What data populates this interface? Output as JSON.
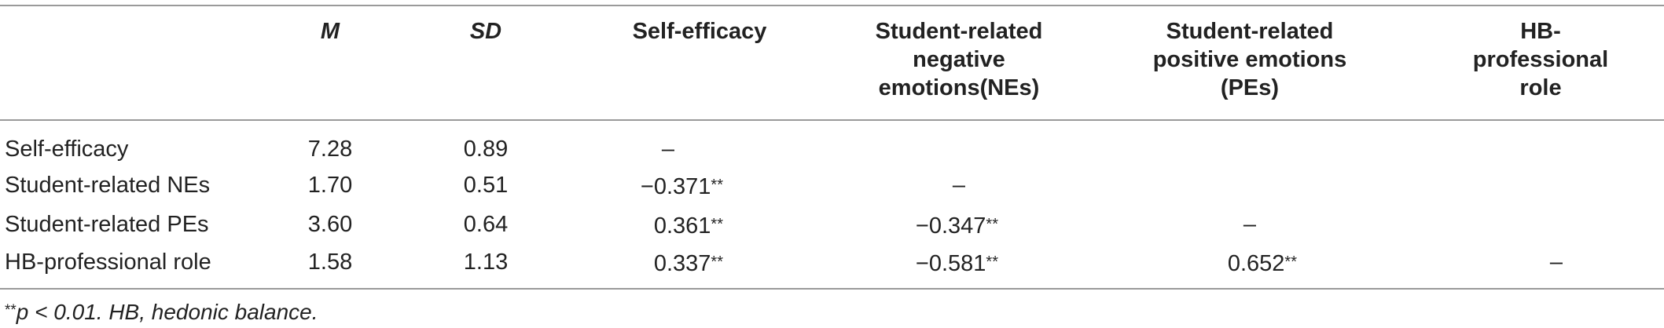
{
  "table": {
    "headers": {
      "m": "M",
      "sd": "SD",
      "self_efficacy": "Self-efficacy",
      "nes": [
        "Student-related",
        "negative",
        "emotions(NEs)"
      ],
      "pes": [
        "Student-related",
        "positive emotions",
        "(PEs)"
      ],
      "hb": [
        "HB-",
        "professional",
        "role"
      ]
    },
    "rows": [
      {
        "label": "Self-efficacy",
        "m": "7.28",
        "sd": "0.89",
        "c1": "–",
        "c1s": "",
        "c2": "",
        "c2s": "",
        "c3": "",
        "c3s": "",
        "c4": "",
        "c4s": ""
      },
      {
        "label": "Student-related NEs",
        "m": "1.70",
        "sd": "0.51",
        "c1": "−0.371",
        "c1s": "**",
        "c2": "–",
        "c2s": "",
        "c3": "",
        "c3s": "",
        "c4": "",
        "c4s": ""
      },
      {
        "label": "Student-related PEs",
        "m": "3.60",
        "sd": "0.64",
        "c1": "0.361",
        "c1s": "**",
        "c2": "−0.347",
        "c2s": "**",
        "c3": "–",
        "c3s": "",
        "c4": "",
        "c4s": ""
      },
      {
        "label": "HB-professional role",
        "m": "1.58",
        "sd": "1.13",
        "c1": "0.337",
        "c1s": "**",
        "c2": "−0.581",
        "c2s": "**",
        "c3": "0.652",
        "c3s": "**",
        "c4": "–",
        "c4s": ""
      }
    ],
    "footnote": {
      "stars": "**",
      "text": "p < 0.01. HB, hedonic balance."
    }
  }
}
